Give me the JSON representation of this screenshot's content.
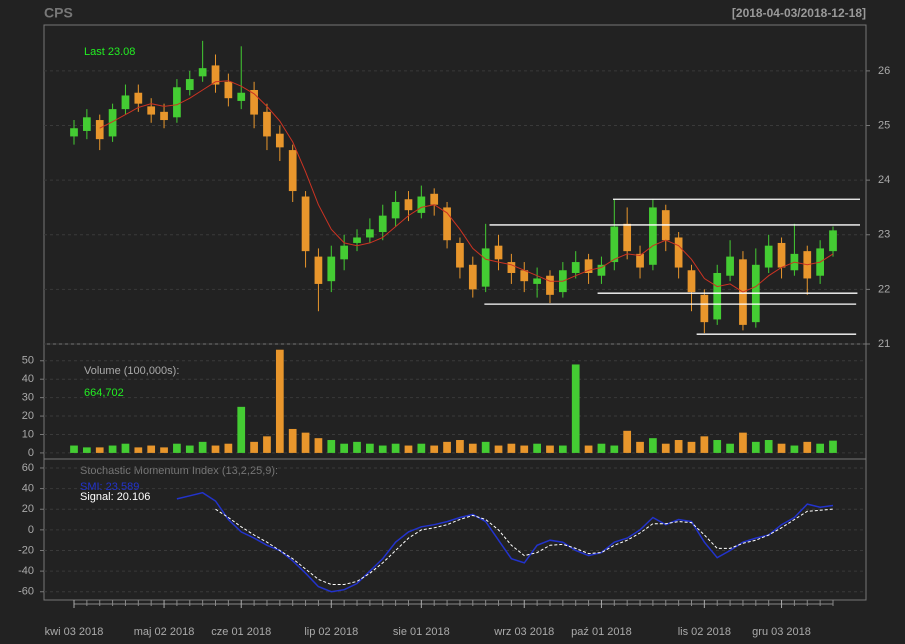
{
  "chart_data": [
    {
      "type": "candlestick",
      "title": "CPS",
      "subtitle": "[2018-04-03/2018-12-18]",
      "annotation": "Last 23.08",
      "up_color": "#44cc33",
      "down_color": "#e8962c",
      "open": [
        24.8,
        24.9,
        25.1,
        24.8,
        25.3,
        25.6,
        25.35,
        25.25,
        25.15,
        25.65,
        25.9,
        26.1,
        25.8,
        25.45,
        25.65,
        25.25,
        24.85,
        24.55,
        23.7,
        22.6,
        22.15,
        22.55,
        22.85,
        22.95,
        23.05,
        23.3,
        23.65,
        23.4,
        23.75,
        23.5,
        22.85,
        22.45,
        22.05,
        22.8,
        22.5,
        22.35,
        22.1,
        22.25,
        21.95,
        22.3,
        22.55,
        22.25,
        22.5,
        23.2,
        22.65,
        22.45,
        23.45,
        22.95,
        22.35,
        21.9,
        21.45,
        22.25,
        22.55,
        21.4,
        22.4,
        22.85,
        22.35,
        22.7,
        22.25,
        22.7
      ],
      "high": [
        25.1,
        25.3,
        25.2,
        25.4,
        25.75,
        25.75,
        25.5,
        25.4,
        25.85,
        26.0,
        26.55,
        26.3,
        25.95,
        26.45,
        25.8,
        25.4,
        25.0,
        24.65,
        23.8,
        22.75,
        22.8,
        23.0,
        23.1,
        23.3,
        23.55,
        23.8,
        23.8,
        23.9,
        23.85,
        23.6,
        22.95,
        22.6,
        23.2,
        23.0,
        22.65,
        22.5,
        22.4,
        22.35,
        22.5,
        22.7,
        22.65,
        22.6,
        23.65,
        23.5,
        22.8,
        23.65,
        23.55,
        23.05,
        22.45,
        22.0,
        22.45,
        22.9,
        22.7,
        22.75,
        23.0,
        22.95,
        23.2,
        22.8,
        22.9,
        23.15
      ],
      "low": [
        24.65,
        24.75,
        24.55,
        24.7,
        25.2,
        25.25,
        25.05,
        24.95,
        25.05,
        25.55,
        25.8,
        25.6,
        25.35,
        25.3,
        24.95,
        24.55,
        24.35,
        23.6,
        22.4,
        21.6,
        21.95,
        22.35,
        22.7,
        22.85,
        22.9,
        23.15,
        23.25,
        23.3,
        23.35,
        22.75,
        22.2,
        21.85,
        21.95,
        22.35,
        22.1,
        21.95,
        21.85,
        21.75,
        21.85,
        22.2,
        22.1,
        22.1,
        22.35,
        22.55,
        22.2,
        22.35,
        22.7,
        22.2,
        21.6,
        21.2,
        21.35,
        22.15,
        21.25,
        21.3,
        22.3,
        22.2,
        22.25,
        21.9,
        22.1,
        22.6
      ],
      "close": [
        24.95,
        25.15,
        24.75,
        25.3,
        25.55,
        25.4,
        25.2,
        25.1,
        25.7,
        25.85,
        26.05,
        25.75,
        25.5,
        25.6,
        25.2,
        24.8,
        24.6,
        23.8,
        22.7,
        22.1,
        22.6,
        22.8,
        22.95,
        23.1,
        23.35,
        23.6,
        23.45,
        23.7,
        23.55,
        22.9,
        22.4,
        22.0,
        22.75,
        22.55,
        22.3,
        22.15,
        22.2,
        21.9,
        22.35,
        22.5,
        22.3,
        22.45,
        23.15,
        22.7,
        22.4,
        23.5,
        22.9,
        22.4,
        21.95,
        21.4,
        22.3,
        22.6,
        21.35,
        22.45,
        22.8,
        22.4,
        22.65,
        22.2,
        22.75,
        23.08
      ],
      "overlay": {
        "color": "#cc3322",
        "values": [
          null,
          null,
          24.95,
          25.07,
          25.2,
          25.33,
          25.4,
          25.35,
          25.38,
          25.5,
          25.65,
          25.8,
          25.82,
          25.72,
          25.58,
          25.35,
          25.08,
          24.7,
          24.15,
          23.55,
          23.1,
          22.85,
          22.8,
          22.85,
          22.95,
          23.15,
          23.35,
          23.5,
          23.55,
          23.4,
          23.1,
          22.75,
          22.55,
          22.5,
          22.45,
          22.35,
          22.25,
          22.15,
          22.15,
          22.25,
          22.35,
          22.4,
          22.55,
          22.65,
          22.62,
          22.8,
          22.9,
          22.8,
          22.55,
          22.2,
          22.05,
          22.1,
          21.95,
          22.05,
          22.25,
          22.4,
          22.5,
          22.45,
          22.5,
          22.65
        ]
      },
      "levels": [
        {
          "value": 23.65,
          "from": 41.9,
          "to": 61.1
        },
        {
          "value": 23.18,
          "from": 32.3,
          "to": 61.1
        },
        {
          "value": 21.93,
          "from": 40.7,
          "to": 60.9
        },
        {
          "value": 21.73,
          "from": 31.9,
          "to": 60.8
        },
        {
          "value": 21.18,
          "from": 48.4,
          "to": 60.8
        }
      ],
      "ylim": [
        21,
        26.84
      ],
      "yticks": [
        21,
        22,
        23,
        24,
        25,
        26
      ],
      "grid": true
    },
    {
      "type": "bar",
      "label": "Volume (100,000s):",
      "annotation": "664,702",
      "values": [
        4,
        3,
        3,
        4,
        5,
        3,
        4,
        3,
        5,
        4,
        6,
        4,
        5,
        25,
        6,
        9,
        56,
        13,
        11,
        8,
        7,
        5,
        6,
        5,
        4,
        5,
        4,
        5,
        4,
        6,
        7,
        5,
        6,
        4,
        5,
        4,
        5,
        4,
        4,
        48,
        4,
        5,
        4,
        12,
        6,
        8,
        5,
        7,
        6,
        9,
        7,
        5,
        11,
        6,
        7,
        5,
        4,
        6,
        5,
        6.65
      ],
      "ylim": [
        -3.3,
        59.1
      ],
      "yticks": [
        0,
        10,
        20,
        30,
        40,
        50
      ],
      "grid": true
    },
    {
      "type": "line",
      "label": "Stochastic Momentum Index (13,2,25,9):",
      "categories": [
        "kwi 03 2018",
        null,
        null,
        null,
        null,
        null,
        null,
        "maj 02 2018",
        null,
        null,
        null,
        null,
        null,
        "cze 01 2018",
        null,
        null,
        null,
        null,
        null,
        null,
        "lip 02 2018",
        null,
        null,
        null,
        null,
        null,
        null,
        "sie 01 2018",
        null,
        null,
        null,
        null,
        null,
        null,
        null,
        "wrz 03 2018",
        null,
        null,
        null,
        null,
        null,
        "paź 01 2018",
        null,
        null,
        null,
        null,
        null,
        null,
        null,
        "lis 02 2018",
        null,
        null,
        null,
        null,
        null,
        "gru 03 2018",
        null,
        null,
        null,
        null
      ],
      "series": [
        {
          "name": "SMI: 23.589",
          "color": "#2233cc",
          "style": "solid",
          "values": [
            null,
            null,
            null,
            null,
            null,
            null,
            null,
            null,
            30,
            33,
            36,
            28,
            10,
            -2,
            -8,
            -15,
            -20,
            -30,
            -42,
            -55,
            -60,
            -58,
            -52,
            -40,
            -28,
            -12,
            -2,
            3,
            5,
            8,
            12,
            15,
            8,
            -10,
            -28,
            -32,
            -15,
            -10,
            -12,
            -20,
            -25,
            -22,
            -12,
            -8,
            0,
            12,
            5,
            10,
            8,
            -12,
            -27,
            -20,
            -12,
            -8,
            -5,
            5,
            12,
            25,
            22,
            23.589
          ]
        },
        {
          "name": "Signal: 20.106",
          "color": "#ffffff",
          "style": "dashed",
          "values": [
            null,
            null,
            null,
            null,
            null,
            null,
            null,
            null,
            null,
            null,
            null,
            20,
            12,
            3,
            -5,
            -12,
            -20,
            -28,
            -38,
            -48,
            -53,
            -53,
            -50,
            -42,
            -32,
            -20,
            -8,
            0,
            2,
            5,
            10,
            14,
            10,
            0,
            -15,
            -25,
            -22,
            -15,
            -14,
            -18,
            -23,
            -22,
            -15,
            -10,
            -3,
            6,
            6,
            8,
            7,
            -5,
            -18,
            -18,
            -13,
            -10,
            -5,
            2,
            10,
            18,
            19,
            20.106
          ]
        }
      ],
      "ylim": [
        -68,
        68.7
      ],
      "yticks": [
        -60,
        -40,
        -20,
        0,
        20,
        40,
        60
      ],
      "grid": true
    }
  ]
}
